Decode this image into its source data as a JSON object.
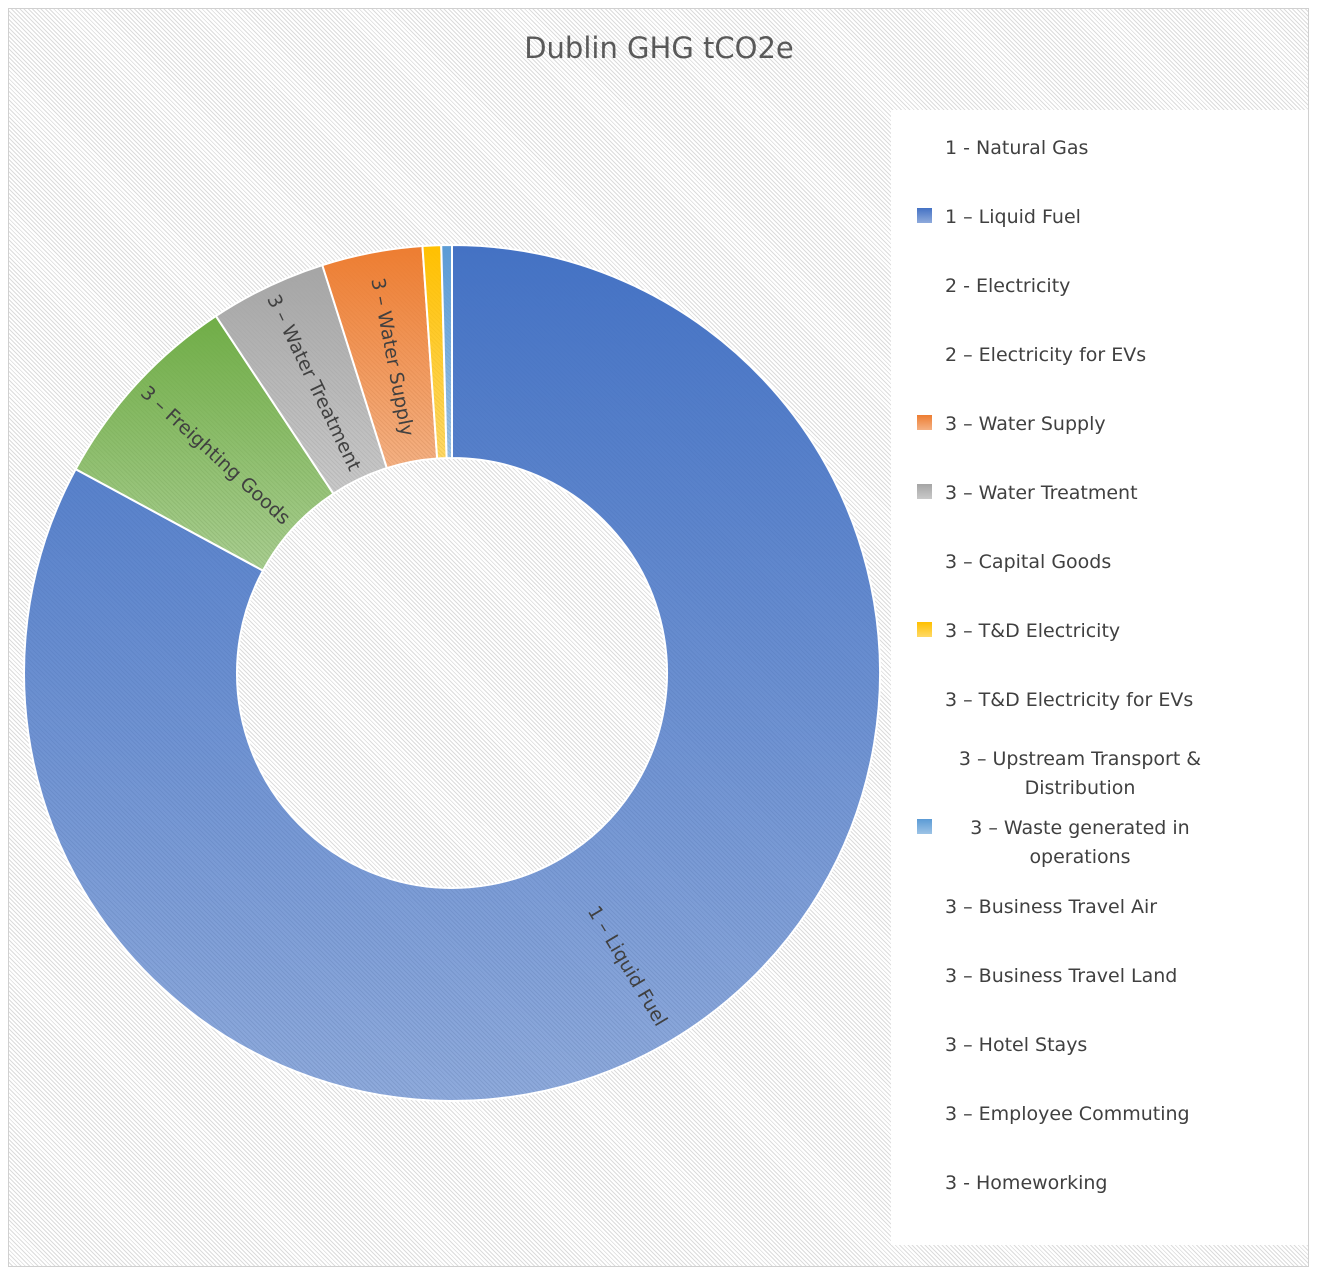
{
  "chart_data": {
    "type": "donut",
    "title": "Dublin GHG tCO2e",
    "categories": [
      "1 – Liquid Fuel",
      "3 – Freighting Goods",
      "3 – Water Treatment",
      "3 – Water Supply",
      "3 – T&D Electricity",
      "3 – Waste generated in operations"
    ],
    "values": [
      82.9,
      7.8,
      4.4,
      3.8,
      0.7,
      0.4
    ],
    "colors": [
      "#4472c4",
      "#70ad47",
      "#a5a5a5",
      "#ed7d31",
      "#ffc000",
      "#5b9bd5"
    ],
    "legend_entries": [
      "1 - Natural Gas",
      "1 – Liquid Fuel",
      "2 - Electricity",
      "2 – Electricity for EVs",
      "3 – Water Supply",
      "3 – Water Treatment",
      "3 – Capital Goods",
      "3 – T&D Electricity",
      "3 – T&D Electricity for EVs",
      "3 – Upstream Transport & Distribution",
      "3 – Waste generated in operations",
      "3 – Business Travel Air",
      "3 – Business Travel Land",
      "3 – Hotel Stays",
      "3 – Employee Commuting",
      "3 - Homeworking"
    ],
    "legend": "right"
  }
}
